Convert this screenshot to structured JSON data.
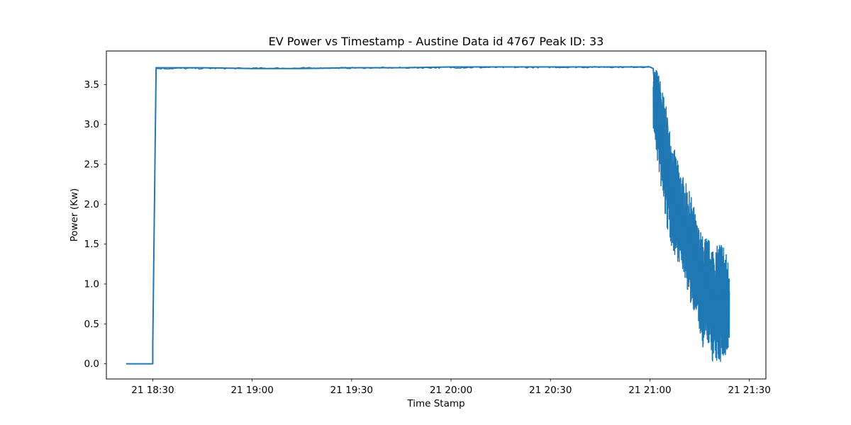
{
  "chart_data": {
    "type": "line",
    "title": "EV Power vs Timestamp - Austine Data id 4767 Peak ID: 33",
    "xlabel": "Time Stamp",
    "ylabel": "Power (Kw)",
    "x_tick_labels": [
      "21 18:30",
      "21 19:00",
      "21 19:30",
      "21 20:00",
      "21 20:30",
      "21 21:00",
      "21 21:30"
    ],
    "x_ticks": [
      "18:30",
      "19:00",
      "19:30",
      "20:00",
      "20:30",
      "21:00",
      "21:30"
    ],
    "y_tick_labels": [
      "0.0",
      "0.5",
      "1.0",
      "1.5",
      "2.0",
      "2.5",
      "3.0",
      "3.5"
    ],
    "y_ticks": [
      0.0,
      0.5,
      1.0,
      1.5,
      2.0,
      2.5,
      3.0,
      3.5
    ],
    "xlim": [
      "18:16",
      "21:35"
    ],
    "ylim": [
      -0.19,
      3.92
    ],
    "grid": false,
    "color": "#1f77b4",
    "series": [
      {
        "x": [
          "18:22",
          "18:25",
          "18:28",
          "18:30",
          "18:30",
          "18:31",
          "18:31",
          "18:45",
          "19:00",
          "19:15",
          "19:30",
          "19:45",
          "20:00",
          "20:15",
          "20:30",
          "20:45",
          "21:00",
          "21:01",
          "21:02",
          "21:03",
          "21:04",
          "21:05",
          "21:06",
          "21:07",
          "21:08",
          "21:09",
          "21:10",
          "21:11",
          "21:12",
          "21:13",
          "21:14",
          "21:15",
          "21:16",
          "21:17",
          "21:18",
          "21:19",
          "21:20",
          "21:21",
          "21:22",
          "21:23",
          "21:24"
        ],
        "values": [
          0.0,
          0.0,
          0.0,
          0.0,
          0.25,
          3.69,
          3.71,
          3.71,
          3.7,
          3.7,
          3.71,
          3.71,
          3.72,
          3.72,
          3.72,
          3.72,
          3.72,
          3.7,
          3.15,
          2.85,
          2.7,
          2.4,
          2.2,
          2.05,
          1.95,
          1.9,
          1.8,
          1.7,
          1.6,
          1.5,
          1.35,
          1.25,
          1.15,
          1.05,
          0.95,
          0.85,
          0.8,
          0.85,
          0.8,
          0.9,
          1.05
        ]
      }
    ],
    "noise_band": {
      "x": [
        "21:01",
        "21:02",
        "21:03",
        "21:04",
        "21:05",
        "21:06",
        "21:07",
        "21:08",
        "21:09",
        "21:10",
        "21:11",
        "21:12",
        "21:13",
        "21:14",
        "21:15",
        "21:16",
        "21:17",
        "21:18",
        "21:19",
        "21:20",
        "21:21",
        "21:22",
        "21:23",
        "21:24"
      ],
      "low": [
        2.95,
        2.6,
        2.3,
        2.0,
        1.7,
        1.55,
        1.4,
        1.3,
        1.25,
        1.15,
        1.0,
        0.75,
        0.7,
        0.6,
        0.4,
        0.1,
        0.3,
        0.2,
        0.0,
        0.0,
        0.0,
        0.05,
        0.0,
        0.1
      ],
      "high": [
        3.72,
        3.7,
        3.6,
        3.4,
        3.2,
        2.95,
        2.75,
        2.6,
        2.45,
        2.35,
        2.25,
        2.15,
        2.05,
        1.8,
        1.7,
        1.6,
        1.6,
        1.55,
        1.5,
        1.45,
        1.55,
        1.55,
        1.4,
        1.25
      ]
    }
  }
}
